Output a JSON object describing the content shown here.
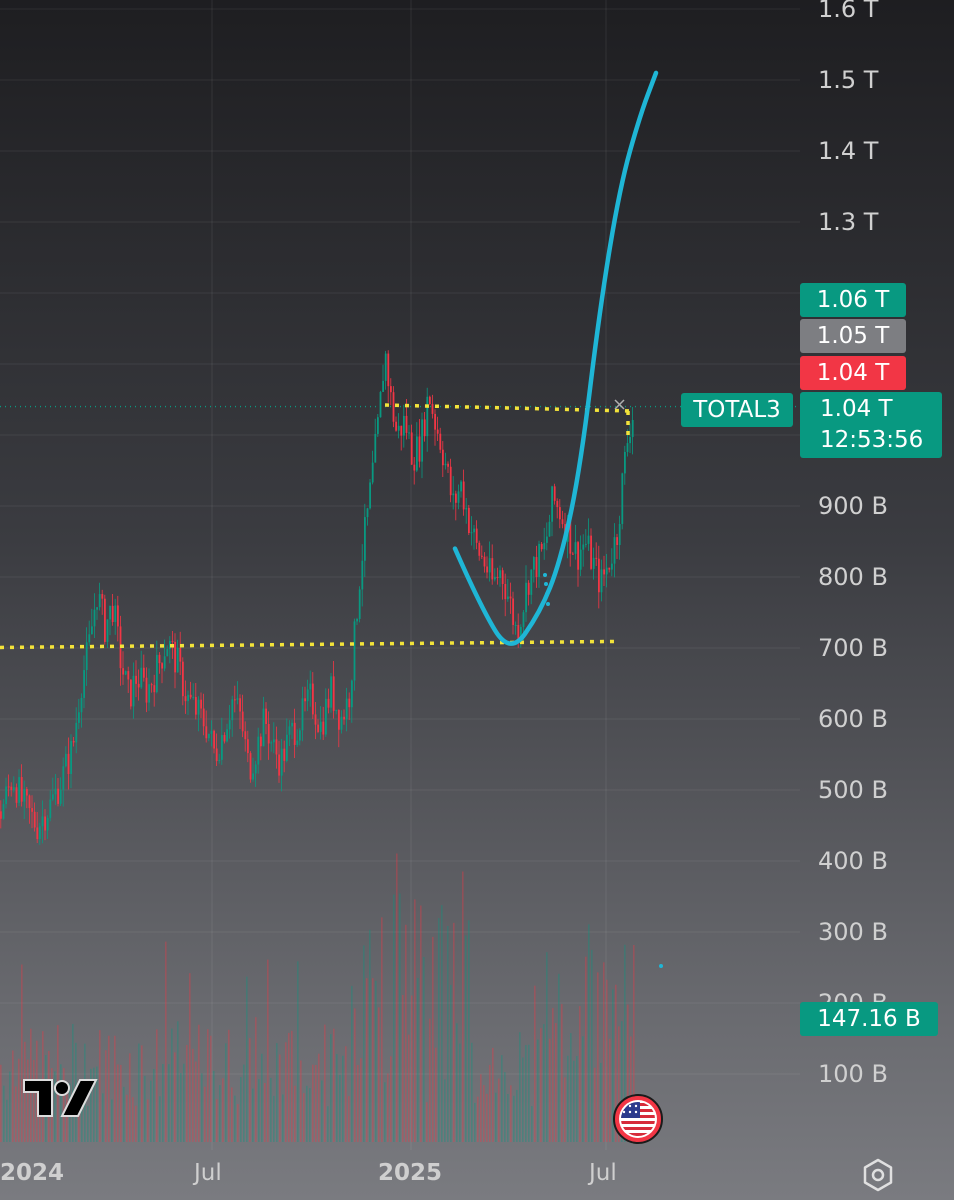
{
  "chart_data": {
    "type": "candlestick",
    "symbol": "TOTAL3",
    "y_axis": {
      "scale": "linear",
      "ticks": [
        "1.6 T",
        "1.5 T",
        "1.4 T",
        "1.3 T",
        "900 B",
        "800 B",
        "700 B",
        "600 B",
        "500 B",
        "400 B",
        "300 B",
        "200 B",
        "100 B"
      ],
      "tick_values": [
        1.6,
        1.5,
        1.4,
        1.3,
        0.9,
        0.8,
        0.7,
        0.6,
        0.5,
        0.4,
        0.3,
        0.2,
        0.1
      ],
      "range": [
        0.0,
        1.6
      ]
    },
    "x_axis": {
      "ticks": [
        "2024",
        "Jul",
        "2025",
        "Jul"
      ],
      "bold_ticks": [
        "2024",
        "2025"
      ]
    },
    "price_tags": {
      "high": "1.06 T",
      "prev": "1.05 T",
      "low": "1.04 T",
      "last": "1.04 T",
      "countdown": "12:53:56",
      "volume": "147.16 B"
    },
    "annotations": {
      "support_level": 0.705,
      "resistance_level": 1.04
    },
    "price_path": [
      [
        0,
        0.47
      ],
      [
        12,
        0.52
      ],
      [
        22,
        0.48
      ],
      [
        36,
        0.45
      ],
      [
        50,
        0.48
      ],
      [
        62,
        0.52
      ],
      [
        72,
        0.56
      ],
      [
        80,
        0.65
      ],
      [
        88,
        0.7
      ],
      [
        96,
        0.78
      ],
      [
        104,
        0.73
      ],
      [
        112,
        0.76
      ],
      [
        120,
        0.68
      ],
      [
        128,
        0.63
      ],
      [
        136,
        0.66
      ],
      [
        146,
        0.64
      ],
      [
        156,
        0.67
      ],
      [
        166,
        0.71
      ],
      [
        176,
        0.68
      ],
      [
        186,
        0.63
      ],
      [
        196,
        0.61
      ],
      [
        206,
        0.59
      ],
      [
        214,
        0.55
      ],
      [
        222,
        0.58
      ],
      [
        232,
        0.63
      ],
      [
        240,
        0.6
      ],
      [
        248,
        0.53
      ],
      [
        256,
        0.56
      ],
      [
        264,
        0.6
      ],
      [
        272,
        0.56
      ],
      [
        280,
        0.54
      ],
      [
        290,
        0.58
      ],
      [
        300,
        0.6
      ],
      [
        310,
        0.63
      ],
      [
        320,
        0.59
      ],
      [
        330,
        0.64
      ],
      [
        340,
        0.6
      ],
      [
        348,
        0.63
      ],
      [
        354,
        0.72
      ],
      [
        360,
        0.82
      ],
      [
        366,
        0.88
      ],
      [
        372,
        0.95
      ],
      [
        378,
        1.02
      ],
      [
        384,
        1.12
      ],
      [
        390,
        1.05
      ],
      [
        396,
        1.0
      ],
      [
        404,
        1.02
      ],
      [
        412,
        0.97
      ],
      [
        420,
        0.99
      ],
      [
        428,
        1.06
      ],
      [
        434,
        1.02
      ],
      [
        440,
        0.99
      ],
      [
        446,
        0.95
      ],
      [
        452,
        0.9
      ],
      [
        460,
        0.93
      ],
      [
        468,
        0.88
      ],
      [
        476,
        0.84
      ],
      [
        484,
        0.82
      ],
      [
        492,
        0.79
      ],
      [
        500,
        0.81
      ],
      [
        508,
        0.77
      ],
      [
        516,
        0.72
      ],
      [
        522,
        0.76
      ],
      [
        528,
        0.8
      ],
      [
        536,
        0.82
      ],
      [
        544,
        0.84
      ],
      [
        552,
        0.91
      ],
      [
        560,
        0.89
      ],
      [
        568,
        0.86
      ],
      [
        576,
        0.83
      ],
      [
        584,
        0.85
      ],
      [
        592,
        0.82
      ],
      [
        600,
        0.79
      ],
      [
        608,
        0.82
      ],
      [
        616,
        0.86
      ],
      [
        622,
        0.94
      ],
      [
        628,
        1.01
      ],
      [
        634,
        1.04
      ]
    ],
    "projection_path": [
      [
        455,
        0.84
      ],
      [
        480,
        0.76
      ],
      [
        510,
        0.69
      ],
      [
        540,
        0.75
      ],
      [
        560,
        0.82
      ],
      [
        580,
        0.95
      ],
      [
        600,
        1.18
      ],
      [
        620,
        1.35
      ],
      [
        640,
        1.45
      ],
      [
        656,
        1.51
      ]
    ]
  },
  "icons": {
    "logo": "tradingview-logo-icon",
    "flag": "us-flag-icon",
    "settings": "gear-icon"
  },
  "colors": {
    "up": "#089981",
    "down": "#f23645",
    "projection": "#1fb6d6",
    "level": "#f3e33a"
  }
}
